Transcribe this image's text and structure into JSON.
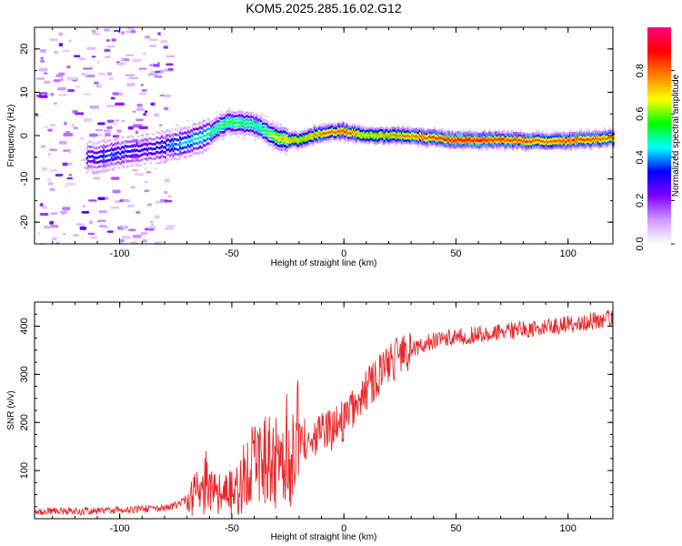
{
  "title": "KOM5.2025.285.16.02.G12",
  "chart_data": [
    {
      "type": "heatmap",
      "xlabel": "Height of straight line (km)",
      "ylabel": "Frequency (Hz)",
      "xlim": [
        -138,
        120
      ],
      "ylim": [
        -25,
        25
      ],
      "xticks": [
        -100,
        -50,
        0,
        50,
        100
      ],
      "yticks": [
        -20,
        -10,
        0,
        10,
        20
      ],
      "colorbar": {
        "label": "Normalized spectral amplitude",
        "range": [
          0,
          1
        ],
        "ticks": [
          0.0,
          0.2,
          0.4,
          0.6,
          0.8
        ],
        "colors": [
          "#ffffff",
          "#cc99ff",
          "#7f00ff",
          "#0000ff",
          "#00ffff",
          "#00ff00",
          "#ffff00",
          "#ff8000",
          "#ff0000",
          "#ff0080"
        ]
      },
      "ridge": {
        "description_points_x": [
          -112,
          -105,
          -95,
          -85,
          -75,
          -68,
          -60,
          -53,
          -47,
          -40,
          -35,
          -30,
          -25,
          -20,
          -15,
          -10,
          -5,
          0,
          10,
          20,
          30,
          40,
          50,
          60,
          70,
          80,
          90,
          100,
          110,
          120
        ],
        "frequency_hz": [
          -5,
          -4.5,
          -3.5,
          -3,
          -2,
          -1,
          0.5,
          3,
          3,
          2.5,
          1,
          -0.5,
          -1,
          -1,
          0,
          0.5,
          1,
          1,
          0,
          0,
          0,
          -0.5,
          -1,
          -1,
          -1,
          -1.2,
          -1.3,
          -1.2,
          -0.8,
          -0.5
        ],
        "amplitude": [
          0.3,
          0.35,
          0.3,
          0.3,
          0.4,
          0.45,
          0.5,
          0.55,
          0.55,
          0.5,
          0.55,
          0.7,
          0.75,
          0.7,
          0.75,
          0.8,
          0.8,
          0.85,
          0.7,
          0.75,
          0.8,
          0.85,
          0.9,
          0.9,
          0.85,
          0.85,
          0.8,
          0.85,
          0.85,
          0.8
        ]
      }
    },
    {
      "type": "line",
      "xlabel": "Height of straight line (km)",
      "ylabel": "SNR (v/v)",
      "xlim": [
        -138,
        120
      ],
      "ylim": [
        0,
        450
      ],
      "xticks": [
        -100,
        -50,
        0,
        50,
        100
      ],
      "yticks": [
        100,
        200,
        300,
        400
      ],
      "series": [
        {
          "color": "#e8262a",
          "x": [
            -138,
            -120,
            -100,
            -90,
            -80,
            -75,
            -70,
            -65,
            -60,
            -55,
            -50,
            -45,
            -40,
            -35,
            -30,
            -25,
            -20,
            -15,
            -10,
            -5,
            0,
            5,
            10,
            15,
            20,
            25,
            30,
            40,
            50,
            60,
            70,
            80,
            90,
            100,
            110,
            120
          ],
          "values": [
            15,
            15,
            18,
            20,
            22,
            28,
            40,
            60,
            80,
            45,
            55,
            80,
            110,
            115,
            120,
            140,
            160,
            170,
            180,
            185,
            205,
            230,
            265,
            295,
            320,
            340,
            350,
            370,
            378,
            383,
            388,
            393,
            398,
            403,
            410,
            418
          ]
        }
      ]
    }
  ]
}
